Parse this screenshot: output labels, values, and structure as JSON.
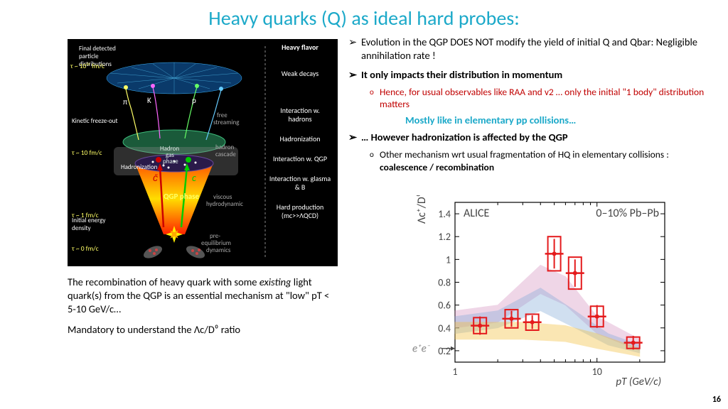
{
  "title": "Heavy quarks (Q) as ideal hard probes:",
  "page_number": "16",
  "diagram": {
    "top_label1": "Final detected",
    "top_label2": "particle  distributions",
    "tau_top": "τ ~ 10¹⁵ fm/c",
    "kinetic": "Kinetic freeze-out",
    "tau_10": "τ ~ 10 fm/c",
    "hadronization_label": "Hadronization",
    "hadron_gas": "Hadron gas phase",
    "qgp": "QGP phase",
    "tau_1": "τ ~ 1 fm/c",
    "initial_energy": "Initial energy density",
    "tau_0": "τ ~ 0 fm/c",
    "right_heavy": "Heavy flavor",
    "right_weak": "Weak decays",
    "right_free": "free streaming",
    "right_hadcascade": "hadron cascade",
    "right_inthadrons": "Interaction w. hadrons",
    "right_hadronization": "Hadronization",
    "right_viscous": "viscous hydrodynamic",
    "right_intqgp": "Interaction w. QGP",
    "right_glasma": "Interaction w. glasma & B",
    "right_preeq": "pre-equilibrium dynamics",
    "right_hard": "Hard production (mc>>ΛQCD)",
    "particles": [
      "π",
      "K",
      "p"
    ]
  },
  "bullets": {
    "b1": "Evolution in the QGP DOES NOT modify the yield of initial Q and Qbar: Negligible annihilation rate !",
    "b2": "It only impacts their distribution in momentum",
    "b2a": "Hence, for usual observables like RAA and v2 … only the initial \"1 body\" distribution matters",
    "b2_mostly": "Mostly like in elementary pp collisions…",
    "b3": "… However hadronization is affected by the QGP",
    "b3a_pre": "Other mechanism wrt usual fragmentation of HQ in elementary collisions :  ",
    "b3a_bold": "coalescence / recombination"
  },
  "bottom": {
    "p1_pre": "The recombination of heavy quark with some ",
    "p1_italic": "existing",
    "p1_post": " light quark(s) from the QGP is an essential mechanism at \"low\" pT < 5-10 GeV/c…",
    "p2": "Mandatory to understand the Λc/D⁰ ratio"
  },
  "chart": {
    "ylabel": "Λc⁺/D⁰",
    "xlabel": "pT  (GeV/c)",
    "alice": "ALICE",
    "centrality": "0–10% Pb–Pb",
    "ee_label": "e⁺e⁻",
    "xlim": [
      1,
      30
    ],
    "ylim": [
      0.1,
      1.5
    ],
    "yticks": [
      0.2,
      0.4,
      0.6,
      0.8,
      1,
      1.2,
      1.4
    ],
    "data": [
      {
        "x": 1.5,
        "y": 0.42,
        "stat": 0.08,
        "syst": 0.07
      },
      {
        "x": 2.5,
        "y": 0.48,
        "stat": 0.07,
        "syst": 0.08
      },
      {
        "x": 3.5,
        "y": 0.45,
        "stat": 0.06,
        "syst": 0.07
      },
      {
        "x": 5.0,
        "y": 1.05,
        "stat": 0.13,
        "syst": 0.15
      },
      {
        "x": 7.0,
        "y": 0.88,
        "stat": 0.12,
        "syst": 0.14
      },
      {
        "x": 10.0,
        "y": 0.5,
        "stat": 0.1,
        "syst": 0.09
      },
      {
        "x": 18.0,
        "y": 0.27,
        "stat": 0.06,
        "syst": 0.05
      }
    ],
    "colors": {
      "marker": "#e41a1c",
      "band_pink": "#d48bbd",
      "band_blue": "#7ba6d6",
      "band_yellow": "#f5c244",
      "axis": "#000000"
    }
  }
}
